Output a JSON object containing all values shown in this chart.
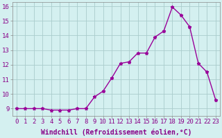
{
  "x": [
    0,
    1,
    2,
    3,
    4,
    5,
    6,
    7,
    8,
    9,
    10,
    11,
    12,
    13,
    14,
    15,
    16,
    17,
    18,
    19,
    20,
    21,
    22,
    23
  ],
  "y": [
    9.0,
    9.0,
    9.0,
    9.0,
    8.9,
    8.9,
    8.9,
    9.0,
    9.0,
    9.8,
    10.2,
    11.1,
    12.1,
    12.2,
    12.8,
    12.8,
    13.9,
    14.3,
    15.95,
    15.4,
    14.6,
    12.1,
    11.5,
    9.6
  ],
  "line_color": "#990099",
  "marker": "*",
  "marker_size": 3.5,
  "bg_color": "#d4f0f0",
  "grid_color": "#aacccc",
  "xlabel": "Windchill (Refroidissement éolien,°C)",
  "xlabel_fontsize": 7,
  "xlabel_color": "#880088",
  "tick_color": "#880088",
  "xtick_labels": [
    "0",
    "1",
    "2",
    "3",
    "4",
    "5",
    "6",
    "7",
    "8",
    "9",
    "10",
    "11",
    "12",
    "13",
    "14",
    "15",
    "16",
    "17",
    "18",
    "19",
    "20",
    "21",
    "22",
    "23"
  ],
  "ylim": [
    8.5,
    16.3
  ],
  "xlim": [
    -0.5,
    23.5
  ],
  "yticks": [
    9,
    10,
    11,
    12,
    13,
    14,
    15,
    16
  ],
  "tick_fontsize": 6.5,
  "line_width": 1.0
}
